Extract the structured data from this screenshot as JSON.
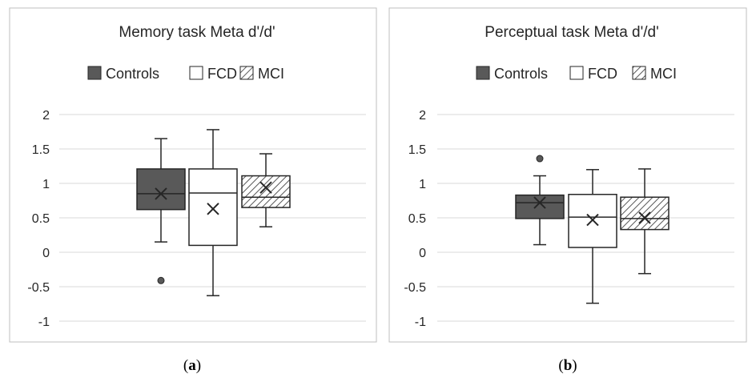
{
  "colors": {
    "controls": "#595959",
    "fcd": "#ffffff",
    "mci_hatch": "#595959",
    "outline": "#262626",
    "frame": "#bfbfbf",
    "grid": "#d9d9d9"
  },
  "legend": [
    "Controls",
    "FCD",
    "MCI"
  ],
  "captions": [
    {
      "open": "(",
      "letter": "a",
      "close": ")"
    },
    {
      "open": "(",
      "letter": "b",
      "close": ")"
    }
  ],
  "chart_data": [
    {
      "type": "box",
      "title": "Memory task Meta d'/d'",
      "ylim": [
        -1,
        2
      ],
      "yticks": [
        "2",
        "1.5",
        "1",
        "0.5",
        "0",
        "-0.5",
        "-1"
      ],
      "grid": true,
      "legend_position": "top",
      "series": [
        {
          "name": "Controls",
          "fill": "solid",
          "min": 0.15,
          "q1": 0.62,
          "median": 0.85,
          "q3": 1.21,
          "max": 1.65,
          "mean": 0.85,
          "outliers": [
            -0.41
          ]
        },
        {
          "name": "FCD",
          "fill": "empty",
          "min": -0.63,
          "q1": 0.1,
          "median": 0.86,
          "q3": 1.21,
          "max": 1.78,
          "mean": 0.63,
          "outliers": []
        },
        {
          "name": "MCI",
          "fill": "hatched",
          "min": 0.37,
          "q1": 0.65,
          "median": 0.8,
          "q3": 1.11,
          "max": 1.43,
          "mean": 0.94,
          "outliers": []
        }
      ]
    },
    {
      "type": "box",
      "title": "Perceptual task Meta d'/d'",
      "ylim": [
        -1,
        2
      ],
      "yticks": [
        "2",
        "1.5",
        "1",
        "0.5",
        "0",
        "-0.5",
        "-1"
      ],
      "grid": true,
      "legend_position": "top",
      "series": [
        {
          "name": "Controls",
          "fill": "solid",
          "min": 0.11,
          "q1": 0.49,
          "median": 0.72,
          "q3": 0.83,
          "max": 1.11,
          "mean": 0.72,
          "outliers": [
            1.36
          ]
        },
        {
          "name": "FCD",
          "fill": "empty",
          "min": -0.74,
          "q1": 0.07,
          "median": 0.51,
          "q3": 0.84,
          "max": 1.2,
          "mean": 0.47,
          "outliers": []
        },
        {
          "name": "MCI",
          "fill": "hatched",
          "min": -0.31,
          "q1": 0.33,
          "median": 0.49,
          "q3": 0.8,
          "max": 1.21,
          "mean": 0.5,
          "outliers": []
        }
      ]
    }
  ]
}
